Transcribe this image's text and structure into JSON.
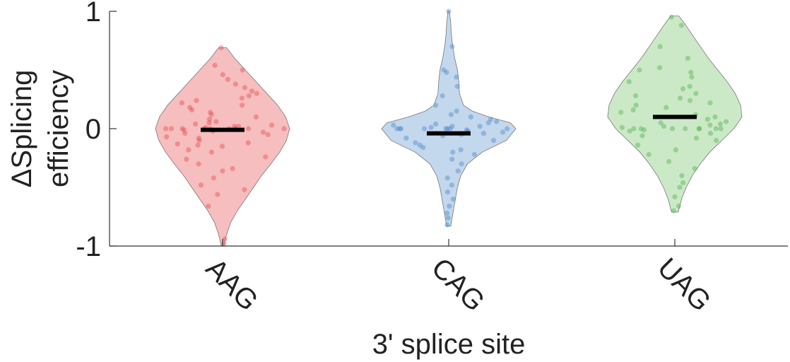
{
  "chart_data": {
    "type": "violin",
    "title": "",
    "xlabel": "3' splice site",
    "ylabel_lines": [
      "ΔSplicing",
      "efficiency"
    ],
    "ylim": [
      -1,
      1
    ],
    "yticks": [
      {
        "value": 1,
        "label": "1"
      },
      {
        "value": 0,
        "label": "0"
      },
      {
        "value": -1,
        "label": "-1"
      }
    ],
    "grid": false,
    "categories": [
      "AAG",
      "CAG",
      "UAG"
    ],
    "series": [
      {
        "category": "AAG",
        "color": "#e8474a",
        "fill": "#f4b3b3",
        "median": -0.01,
        "range": [
          -1.0,
          0.69
        ],
        "density": [
          [
            -1.0,
            0.02
          ],
          [
            -0.9,
            0.06
          ],
          [
            -0.8,
            0.12
          ],
          [
            -0.7,
            0.22
          ],
          [
            -0.6,
            0.34
          ],
          [
            -0.5,
            0.46
          ],
          [
            -0.4,
            0.58
          ],
          [
            -0.3,
            0.72
          ],
          [
            -0.2,
            0.85
          ],
          [
            -0.1,
            0.95
          ],
          [
            0.0,
            1.0
          ],
          [
            0.1,
            0.94
          ],
          [
            0.2,
            0.82
          ],
          [
            0.3,
            0.66
          ],
          [
            0.4,
            0.5
          ],
          [
            0.5,
            0.34
          ],
          [
            0.6,
            0.18
          ],
          [
            0.69,
            0.06
          ]
        ],
        "points": [
          -0.98,
          -0.94,
          -0.66,
          -0.56,
          -0.52,
          -0.48,
          -0.42,
          -0.36,
          -0.34,
          -0.3,
          -0.26,
          -0.24,
          -0.2,
          -0.18,
          -0.15,
          -0.14,
          -0.13,
          -0.12,
          -0.1,
          -0.08,
          -0.07,
          -0.05,
          -0.04,
          -0.03,
          -0.02,
          -0.01,
          0.0,
          0.0,
          0.0,
          0.0,
          0.0,
          0.0,
          0.0,
          0.0,
          0.0,
          0.01,
          0.02,
          0.02,
          0.03,
          0.04,
          0.05,
          0.06,
          0.08,
          0.1,
          0.12,
          0.14,
          0.16,
          0.18,
          0.2,
          0.22,
          0.24,
          0.26,
          0.28,
          0.3,
          0.32,
          0.35,
          0.38,
          0.42,
          0.46,
          0.5,
          0.54,
          0.69
        ]
      },
      {
        "category": "CAG",
        "color": "#4a86c5",
        "fill": "#b9d0ea",
        "median": -0.04,
        "range": [
          -0.83,
          1.0
        ],
        "density": [
          [
            -0.83,
            0.03
          ],
          [
            -0.7,
            0.07
          ],
          [
            -0.6,
            0.1
          ],
          [
            -0.5,
            0.13
          ],
          [
            -0.4,
            0.18
          ],
          [
            -0.3,
            0.28
          ],
          [
            -0.2,
            0.5
          ],
          [
            -0.1,
            0.86
          ],
          [
            0.0,
            1.0
          ],
          [
            0.05,
            0.92
          ],
          [
            0.1,
            0.6
          ],
          [
            0.15,
            0.35
          ],
          [
            0.2,
            0.22
          ],
          [
            0.3,
            0.16
          ],
          [
            0.4,
            0.15
          ],
          [
            0.5,
            0.13
          ],
          [
            0.6,
            0.09
          ],
          [
            0.7,
            0.06
          ],
          [
            0.8,
            0.04
          ],
          [
            0.9,
            0.03
          ],
          [
            1.0,
            0.01
          ]
        ],
        "points": [
          -0.82,
          -0.76,
          -0.72,
          -0.66,
          -0.6,
          -0.54,
          -0.48,
          -0.42,
          -0.36,
          -0.3,
          -0.26,
          -0.22,
          -0.2,
          -0.18,
          -0.16,
          -0.14,
          -0.12,
          -0.1,
          -0.08,
          -0.06,
          -0.05,
          -0.04,
          -0.03,
          -0.02,
          -0.01,
          0.0,
          0.0,
          0.0,
          0.0,
          0.0,
          0.0,
          0.0,
          0.0,
          0.01,
          0.02,
          0.02,
          0.03,
          0.04,
          0.05,
          0.06,
          0.08,
          0.1,
          0.12,
          0.15,
          0.2,
          0.28,
          0.36,
          0.44,
          0.48,
          0.5,
          0.7,
          1.0
        ]
      },
      {
        "category": "UAG",
        "color": "#4db04a",
        "fill": "#c2e5bd",
        "median": 0.1,
        "range": [
          -0.71,
          0.96
        ],
        "density": [
          [
            -0.71,
            0.05
          ],
          [
            -0.6,
            0.1
          ],
          [
            -0.5,
            0.17
          ],
          [
            -0.4,
            0.26
          ],
          [
            -0.3,
            0.38
          ],
          [
            -0.2,
            0.52
          ],
          [
            -0.1,
            0.7
          ],
          [
            0.0,
            0.88
          ],
          [
            0.1,
            1.0
          ],
          [
            0.2,
            0.98
          ],
          [
            0.3,
            0.9
          ],
          [
            0.4,
            0.78
          ],
          [
            0.5,
            0.64
          ],
          [
            0.6,
            0.5
          ],
          [
            0.7,
            0.38
          ],
          [
            0.8,
            0.26
          ],
          [
            0.9,
            0.14
          ],
          [
            0.96,
            0.06
          ]
        ],
        "points": [
          -0.7,
          -0.66,
          -0.58,
          -0.5,
          -0.46,
          -0.4,
          -0.34,
          -0.28,
          -0.22,
          -0.18,
          -0.14,
          -0.1,
          -0.08,
          -0.06,
          -0.04,
          -0.02,
          -0.01,
          0.0,
          0.0,
          0.0,
          0.0,
          0.0,
          0.0,
          0.0,
          0.0,
          0.01,
          0.02,
          0.03,
          0.04,
          0.05,
          0.06,
          0.08,
          0.1,
          0.12,
          0.14,
          0.16,
          0.18,
          0.2,
          0.22,
          0.24,
          0.26,
          0.28,
          0.3,
          0.34,
          0.36,
          0.4,
          0.44,
          0.48,
          0.5,
          0.52,
          0.6,
          0.7,
          0.88,
          0.95
        ]
      }
    ]
  }
}
